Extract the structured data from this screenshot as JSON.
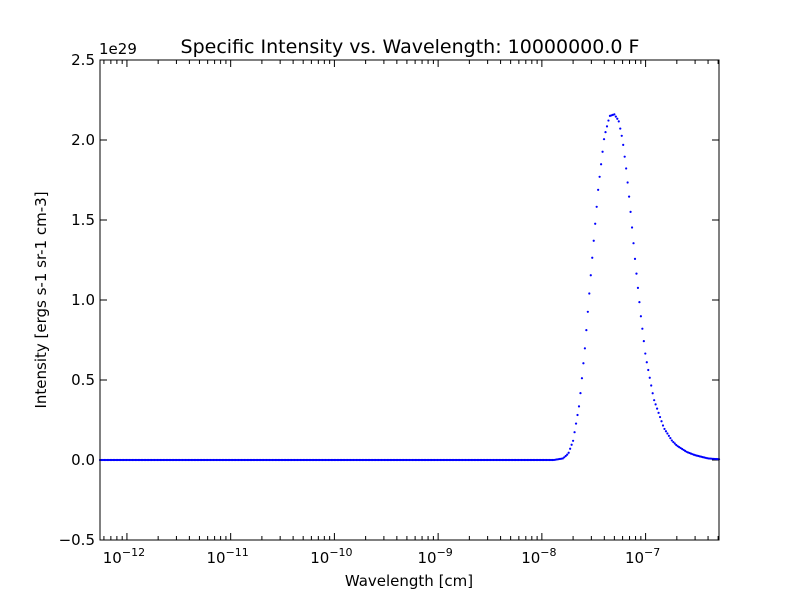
{
  "chart_data": {
    "type": "scatter",
    "title": "Specific Intensity vs. Wavelength: 10000000.0 F",
    "xlabel": "Wavelength [cm]",
    "ylabel": "Intensity [ergs s-1 sr-1 cm-3]",
    "y_multiplier": "1e29",
    "x_scale": "log",
    "xlim": [
      5.5e-13,
      5.1e-07
    ],
    "ylim": [
      -0.5,
      2.5
    ],
    "x_ticks": [
      {
        "value": 1e-12,
        "base": "10",
        "exp": "-12"
      },
      {
        "value": 1e-11,
        "base": "10",
        "exp": "-11"
      },
      {
        "value": 1e-10,
        "base": "10",
        "exp": "-10"
      },
      {
        "value": 1e-09,
        "base": "10",
        "exp": "-9"
      },
      {
        "value": 1e-08,
        "base": "10",
        "exp": "-8"
      },
      {
        "value": 1e-07,
        "base": "10",
        "exp": "-7"
      }
    ],
    "y_ticks": [
      {
        "value": -0.5,
        "label": "−0.5"
      },
      {
        "value": 0.0,
        "label": "0.0"
      },
      {
        "value": 0.5,
        "label": "0.5"
      },
      {
        "value": 1.0,
        "label": "1.0"
      },
      {
        "value": 1.5,
        "label": "1.5"
      },
      {
        "value": 2.0,
        "label": "2.0"
      },
      {
        "value": 2.5,
        "label": "2.5"
      }
    ],
    "grid": false,
    "marker_color": "#0000ff",
    "series": [
      {
        "values_unit": "1e29 ergs s-1 sr-1 cm-3",
        "x": [
          1e-08,
          1.3e-08,
          1.6e-08,
          1.8e-08,
          2e-08,
          2.3e-08,
          2.6e-08,
          3e-08,
          3.5e-08,
          4e-08,
          4.5e-08,
          5e-08,
          5.5e-08,
          6e-08,
          6.5e-08,
          7e-08,
          8e-08,
          9e-08,
          1e-07,
          1.2e-07,
          1.5e-07,
          1.8e-07,
          2e-07,
          2.5e-07,
          3e-07,
          4e-07,
          5e-07
        ],
        "y": [
          0.0,
          0.0,
          0.01,
          0.04,
          0.12,
          0.35,
          0.7,
          1.2,
          1.7,
          2.02,
          2.15,
          2.16,
          2.12,
          2.0,
          1.82,
          1.62,
          1.22,
          0.9,
          0.65,
          0.38,
          0.2,
          0.12,
          0.09,
          0.05,
          0.03,
          0.01,
          0.005
        ]
      }
    ]
  }
}
